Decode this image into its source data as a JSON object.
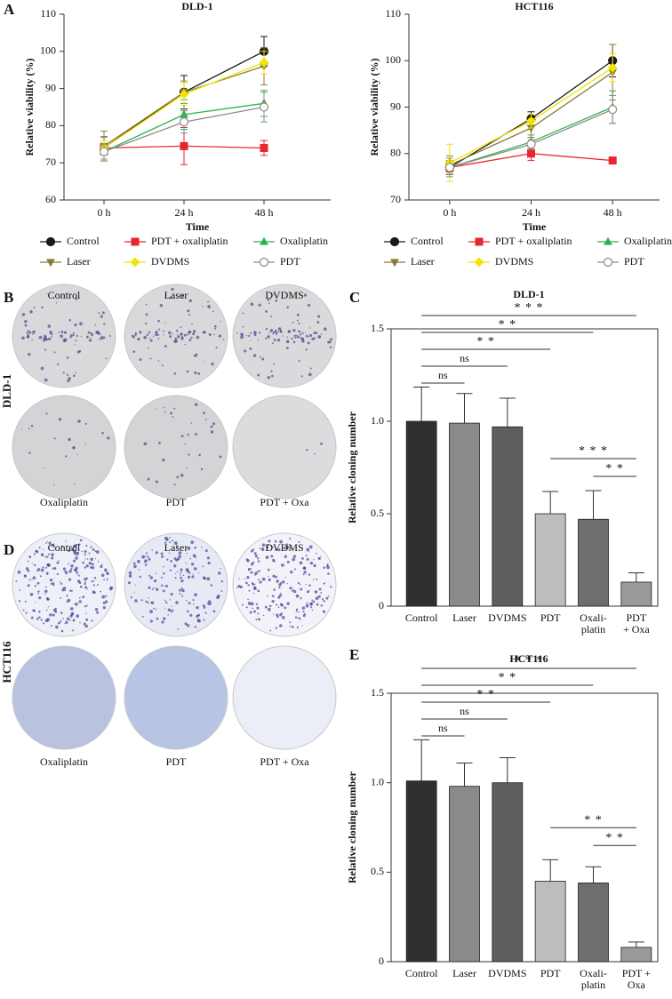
{
  "panels": [
    "A",
    "B",
    "C",
    "D",
    "E"
  ],
  "chart_data": [
    {
      "type": "line",
      "title": "DLD-1",
      "xlabel": "Time",
      "ylabel": "Relative viability (%)",
      "categories": [
        "0 h",
        "24 h",
        "48 h"
      ],
      "ylim": [
        60,
        110
      ],
      "yticks": [
        60,
        70,
        80,
        90,
        100,
        110
      ],
      "series": [
        {
          "name": "Control",
          "color": "#1a1a1a",
          "marker": "circle",
          "values": [
            74,
            89,
            100
          ],
          "errors": [
            3,
            4.5,
            4
          ]
        },
        {
          "name": "PDT + oxaliplatin",
          "color": "#e8262d",
          "marker": "square",
          "values": [
            74,
            74.5,
            74
          ],
          "errors": [
            1,
            5,
            2
          ]
        },
        {
          "name": "Oxaliplatin",
          "color": "#2db54a",
          "marker": "triangle",
          "values": [
            73,
            83,
            86
          ],
          "errors": [
            2,
            4,
            3.5
          ]
        },
        {
          "name": "Laser",
          "color": "#8a7a3a",
          "marker": "triangle-down",
          "values": [
            74.5,
            89,
            96
          ],
          "errors": [
            4,
            3,
            5
          ]
        },
        {
          "name": "DVDMS",
          "color": "#f2e200",
          "marker": "diamond",
          "values": [
            74,
            88.5,
            97
          ],
          "errors": [
            2,
            3,
            3
          ]
        },
        {
          "name": "PDT",
          "color": "#8c8c8c",
          "marker": "open-circle",
          "values": [
            73,
            81,
            85
          ],
          "errors": [
            2,
            3,
            4
          ]
        }
      ]
    },
    {
      "type": "line",
      "title": "HCT116",
      "xlabel": "Time",
      "ylabel": "Relative viability (%)",
      "categories": [
        "0 h",
        "24 h",
        "48 h"
      ],
      "ylim": [
        70,
        110
      ],
      "yticks": [
        70,
        80,
        90,
        100,
        110
      ],
      "series": [
        {
          "name": "Control",
          "color": "#1a1a1a",
          "marker": "circle",
          "values": [
            77,
            87.5,
            100
          ],
          "errors": [
            1.5,
            1.5,
            3.5
          ]
        },
        {
          "name": "PDT + oxaliplatin",
          "color": "#e8262d",
          "marker": "square",
          "values": [
            77,
            80,
            78.5
          ],
          "errors": [
            1,
            1.5,
            0.5
          ]
        },
        {
          "name": "Oxaliplatin",
          "color": "#2db54a",
          "marker": "triangle",
          "values": [
            77,
            82.5,
            90
          ],
          "errors": [
            1.5,
            1.5,
            3.5
          ]
        },
        {
          "name": "Laser",
          "color": "#8a7a3a",
          "marker": "triangle-down",
          "values": [
            77.5,
            85.5,
            97.5
          ],
          "errors": [
            2,
            2,
            6
          ]
        },
        {
          "name": "DVDMS",
          "color": "#f2e200",
          "marker": "diamond",
          "values": [
            78,
            87,
            98.5
          ],
          "errors": [
            4,
            1.5,
            3
          ]
        },
        {
          "name": "PDT",
          "color": "#8c8c8c",
          "marker": "open-circle",
          "values": [
            77,
            82,
            89.5
          ],
          "errors": [
            2,
            1,
            3
          ]
        }
      ]
    },
    {
      "type": "bar",
      "title": "DLD-1",
      "ylabel": "Relative cloning number",
      "categories": [
        [
          "Control"
        ],
        [
          "Laser"
        ],
        [
          "DVDMS"
        ],
        [
          "PDT"
        ],
        [
          "Oxali-",
          "platin"
        ],
        [
          "PDT",
          "+ Oxa"
        ]
      ],
      "values": [
        1.0,
        0.99,
        0.97,
        0.5,
        0.47,
        0.13
      ],
      "errors": [
        0.185,
        0.16,
        0.155,
        0.12,
        0.155,
        0.05
      ],
      "colors": [
        "#2f2f2f",
        "#8a8a8a",
        "#5e5e5e",
        "#bdbdbd",
        "#6e6e6e",
        "#9a9a9a"
      ],
      "ylim": [
        0,
        1.5
      ],
      "yticks": [
        0,
        0.5,
        {
          "value": 1,
          "label": "1.0"
        },
        1.5
      ],
      "annotations": [
        {
          "from": 0,
          "to": 5,
          "label": "* * *"
        },
        {
          "from": 0,
          "to": 4,
          "label": "* *"
        },
        {
          "from": 0,
          "to": 3,
          "label": "* *"
        },
        {
          "from": 0,
          "to": 2,
          "label": "ns"
        },
        {
          "from": 0,
          "to": 1,
          "label": "ns"
        },
        {
          "from": 3,
          "to": 5,
          "label": "* * *"
        },
        {
          "from": 4,
          "to": 5,
          "label": "* *"
        }
      ]
    },
    {
      "type": "bar",
      "title": "HCT116",
      "ylabel": "Relative cloning number",
      "categories": [
        [
          "Control"
        ],
        [
          "Laser"
        ],
        [
          "DVDMS"
        ],
        [
          "PDT"
        ],
        [
          "Oxali-",
          "platin"
        ],
        [
          "PDT +",
          "Oxa"
        ]
      ],
      "values": [
        1.01,
        0.98,
        1.0,
        0.45,
        0.44,
        0.08
      ],
      "errors": [
        0.23,
        0.13,
        0.14,
        0.12,
        0.09,
        0.03
      ],
      "colors": [
        "#2f2f2f",
        "#8a8a8a",
        "#5e5e5e",
        "#bdbdbd",
        "#6e6e6e",
        "#9a9a9a"
      ],
      "ylim": [
        0,
        1.5
      ],
      "yticks": [
        0,
        0.5,
        {
          "value": 1,
          "label": "1.0"
        },
        1.5
      ],
      "annotations": [
        {
          "from": 0,
          "to": 5,
          "label": "* * *"
        },
        {
          "from": 0,
          "to": 4,
          "label": "* *"
        },
        {
          "from": 0,
          "to": 3,
          "label": "* *"
        },
        {
          "from": 0,
          "to": 2,
          "label": "ns"
        },
        {
          "from": 0,
          "to": 1,
          "label": "ns"
        },
        {
          "from": 3,
          "to": 5,
          "label": "* *"
        },
        {
          "from": 4,
          "to": 5,
          "label": "* *"
        }
      ]
    }
  ],
  "photo_panels": [
    {
      "row_label": "DLD-1",
      "top": [
        "Control",
        "Laser",
        "DVDMS"
      ],
      "bottom": [
        "Oxaliplatin",
        "PDT",
        "PDT + Oxa"
      ]
    },
    {
      "row_label": "HCT116",
      "top": [
        "Control",
        "Laser",
        "DVDMS"
      ],
      "bottom": [
        "Oxaliplatin",
        "PDT",
        "PDT + Oxa"
      ]
    }
  ]
}
